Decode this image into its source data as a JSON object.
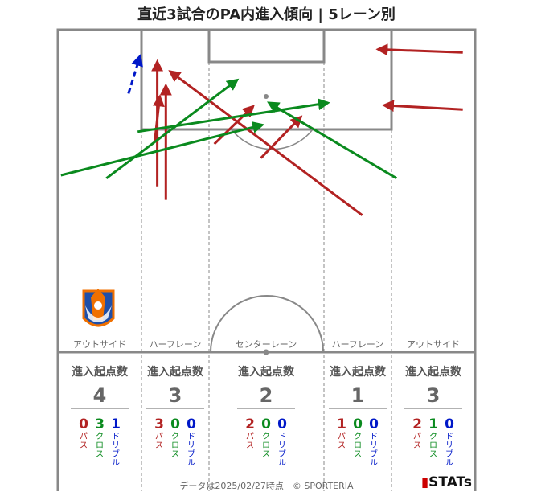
{
  "title": "直近3試合のPA内進入傾向 | 5レーン別",
  "footer": "データは2025/02/27時点　© SPORTERIA",
  "brand": "STATs",
  "colors": {
    "pass": "#b22222",
    "cross": "#0a8a1e",
    "dribble": "#0018c8",
    "line": "#888888"
  },
  "lanes": [
    {
      "name": "アウトサイド",
      "header": "進入起点数",
      "total": "4",
      "pass": "0",
      "cross": "3",
      "dribble": "1"
    },
    {
      "name": "ハーフレーン",
      "header": "進入起点数",
      "total": "3",
      "pass": "3",
      "cross": "0",
      "dribble": "0"
    },
    {
      "name": "センターレーン",
      "header": "進入起点数",
      "total": "2",
      "pass": "2",
      "cross": "0",
      "dribble": "0"
    },
    {
      "name": "ハーフレーン",
      "header": "進入起点数",
      "total": "1",
      "pass": "1",
      "cross": "0",
      "dribble": "0"
    },
    {
      "name": "アウトサイド",
      "header": "進入起点数",
      "total": "3",
      "pass": "2",
      "cross": "1",
      "dribble": "0"
    }
  ],
  "labels": {
    "pass": "パス",
    "cross": "クロス",
    "dribble": "ドリブル"
  },
  "chart_data": {
    "type": "scatter",
    "x_range": [
      0,
      68
    ],
    "y_range": [
      0,
      52.5
    ],
    "categories": [
      "パス",
      "クロス",
      "ドリブル"
    ],
    "arrows": [
      {
        "kind": "pass",
        "from": [
          66,
          48.8
        ],
        "to": [
          52.2,
          49.3
        ]
      },
      {
        "kind": "pass",
        "from": [
          66,
          39.5
        ],
        "to": [
          53.2,
          40.2
        ]
      },
      {
        "kind": "pass",
        "from": [
          49.6,
          22.3
        ],
        "to": [
          18.3,
          45.7
        ]
      },
      {
        "kind": "pass",
        "from": [
          16.2,
          27.0
        ],
        "to": [
          16.2,
          47.3
        ]
      },
      {
        "kind": "pass",
        "from": [
          17.6,
          24.8
        ],
        "to": [
          17.6,
          43.4
        ]
      },
      {
        "kind": "pass",
        "from": [
          15.8,
          34.4
        ],
        "to": [
          16.6,
          41.6
        ]
      },
      {
        "kind": "pass",
        "from": [
          25.5,
          33.9
        ],
        "to": [
          31.8,
          40.0
        ]
      },
      {
        "kind": "pass",
        "from": [
          33.1,
          31.6
        ],
        "to": [
          39.6,
          38.3
        ]
      },
      {
        "kind": "cross",
        "from": [
          0.5,
          28.8
        ],
        "to": [
          33.3,
          37.0
        ]
      },
      {
        "kind": "cross",
        "from": [
          7.9,
          28.3
        ],
        "to": [
          29.2,
          44.3
        ]
      },
      {
        "kind": "cross",
        "from": [
          13.0,
          35.9
        ],
        "to": [
          44.0,
          40.6
        ]
      },
      {
        "kind": "cross",
        "from": [
          55.2,
          28.3
        ],
        "to": [
          34.4,
          40.6
        ]
      },
      {
        "kind": "dribble",
        "from": [
          11.5,
          42.1
        ],
        "to": [
          13.4,
          48.2
        ]
      }
    ]
  }
}
